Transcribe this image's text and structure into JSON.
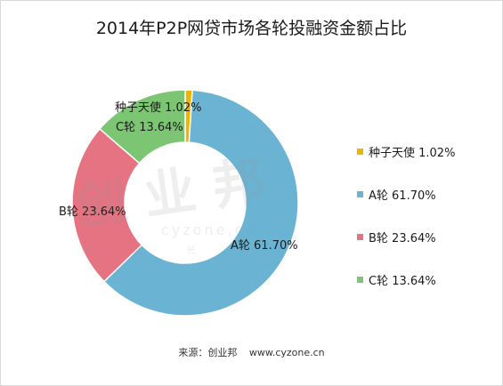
{
  "title": "2014年P2P网贷市场各轮投融资金额占比",
  "chart_data": {
    "type": "pie",
    "donut": true,
    "categories": [
      "种子天使",
      "A轮",
      "B轮",
      "C轮"
    ],
    "values": [
      1.02,
      61.7,
      23.64,
      13.64
    ],
    "value_labels": [
      "1.02%",
      "61.70%",
      "23.64%",
      "13.64%"
    ],
    "colors": [
      "#f0b400",
      "#6ab3d3",
      "#e57382",
      "#7cc572"
    ],
    "legend_position": "right"
  },
  "slice_labels": {
    "seed": "种子天使 1.02%",
    "a": "A轮 61.70%",
    "b": "B轮 23.64%",
    "c": "C轮 13.64%"
  },
  "legend": [
    {
      "label": "种子天使 1.02%",
      "color": "#f0b400"
    },
    {
      "label": "A轮 61.70%",
      "color": "#6ab3d3"
    },
    {
      "label": "B轮 23.64%",
      "color": "#e57382"
    },
    {
      "label": "C轮 13.64%",
      "color": "#7cc572"
    }
  ],
  "source": {
    "prefix": "来源：创业邦",
    "url": "www.cyzone.cn"
  },
  "watermark": {
    "logo": "创业邦",
    "url": "cyzone.cn",
    "tagline": "创 新 长 创"
  }
}
